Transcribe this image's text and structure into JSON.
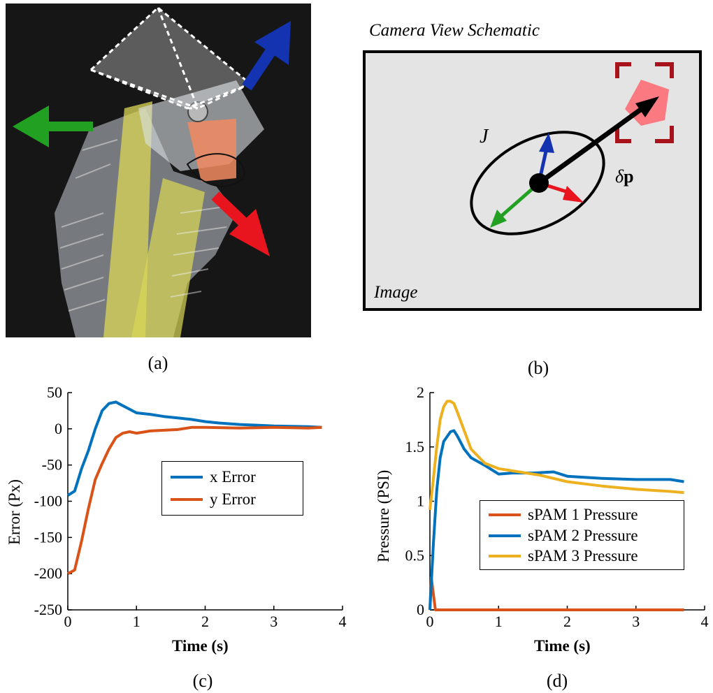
{
  "captions": {
    "a": "(a)",
    "b": "(b)",
    "c": "(c)",
    "d": "(d)"
  },
  "schematic": {
    "title": "Camera View Schematic",
    "image_label": "Image",
    "jacobian_label": "J",
    "delta_symbol": "δ",
    "delta_vector": "p"
  },
  "colors": {
    "blue": "#0072bd",
    "orange": "#d95319",
    "yellow": "#edb120",
    "arrow_blue": "#1433b0",
    "arrow_green": "#22a022",
    "arrow_red": "#e8141e",
    "target_red": "#a8121a",
    "target_pink": "#fb7a82"
  },
  "chart_data": [
    {
      "type": "line",
      "xlabel": "Time (s)",
      "ylabel": "Error (Px)",
      "xlim": [
        0,
        4
      ],
      "ylim": [
        -250,
        50
      ],
      "xticks": [
        "0",
        "1",
        "2",
        "3",
        "4"
      ],
      "yticks": [
        "-250",
        "-200",
        "-150",
        "-100",
        "-50",
        "0",
        "50"
      ],
      "legend": "center",
      "series": [
        {
          "name": "x Error",
          "color": "#0072bd",
          "x": [
            0,
            0.1,
            0.2,
            0.3,
            0.4,
            0.5,
            0.6,
            0.7,
            0.8,
            1.0,
            1.2,
            1.4,
            1.6,
            1.8,
            2.0,
            2.2,
            2.5,
            3.0,
            3.5,
            3.7
          ],
          "y": [
            -92,
            -86,
            -55,
            -30,
            0,
            25,
            35,
            37,
            32,
            22,
            20,
            17,
            15,
            13,
            10,
            8,
            6,
            4,
            3,
            2
          ]
        },
        {
          "name": "y Error",
          "color": "#d95319",
          "x": [
            0,
            0.1,
            0.2,
            0.3,
            0.4,
            0.5,
            0.6,
            0.7,
            0.8,
            0.9,
            1.0,
            1.2,
            1.4,
            1.6,
            1.8,
            2.0,
            2.5,
            3.0,
            3.5,
            3.7
          ],
          "y": [
            -200,
            -195,
            -155,
            -110,
            -70,
            -48,
            -28,
            -12,
            -6,
            -4,
            -6,
            -3,
            -2,
            -1,
            2,
            2,
            1,
            2,
            1,
            2
          ]
        }
      ]
    },
    {
      "type": "line",
      "xlabel": "Time (s)",
      "ylabel": "Pressure (PSI)",
      "xlim": [
        0,
        4
      ],
      "ylim": [
        0,
        2
      ],
      "xticks": [
        "0",
        "1",
        "2",
        "3",
        "4"
      ],
      "yticks": [
        "0",
        "0.5",
        "1",
        "1.5",
        "2"
      ],
      "legend": "lower-right",
      "series": [
        {
          "name": "sPAM 1 Pressure",
          "color": "#d95319",
          "x": [
            0,
            0.02,
            0.05,
            0.08,
            0.2,
            1.0,
            2.0,
            3.0,
            3.7
          ],
          "y": [
            0,
            0.3,
            0.15,
            0,
            0,
            0,
            0,
            0,
            0
          ]
        },
        {
          "name": "sPAM 2 Pressure",
          "color": "#0072bd",
          "x": [
            0,
            0.05,
            0.1,
            0.15,
            0.2,
            0.3,
            0.35,
            0.4,
            0.5,
            0.6,
            0.8,
            1.0,
            1.2,
            1.5,
            1.8,
            2.0,
            2.5,
            3.0,
            3.5,
            3.7
          ],
          "y": [
            0,
            0.6,
            1.1,
            1.4,
            1.55,
            1.64,
            1.65,
            1.6,
            1.48,
            1.4,
            1.33,
            1.25,
            1.26,
            1.26,
            1.27,
            1.23,
            1.21,
            1.2,
            1.2,
            1.18
          ]
        },
        {
          "name": "sPAM 3 Pressure",
          "color": "#edb120",
          "x": [
            0,
            0.05,
            0.1,
            0.15,
            0.2,
            0.25,
            0.3,
            0.35,
            0.4,
            0.5,
            0.6,
            0.8,
            1.0,
            1.3,
            1.6,
            2.0,
            2.5,
            3.0,
            3.5,
            3.7
          ],
          "y": [
            0.92,
            1.2,
            1.5,
            1.75,
            1.87,
            1.92,
            1.92,
            1.9,
            1.82,
            1.65,
            1.48,
            1.35,
            1.3,
            1.27,
            1.24,
            1.18,
            1.14,
            1.11,
            1.09,
            1.08
          ]
        }
      ]
    }
  ]
}
